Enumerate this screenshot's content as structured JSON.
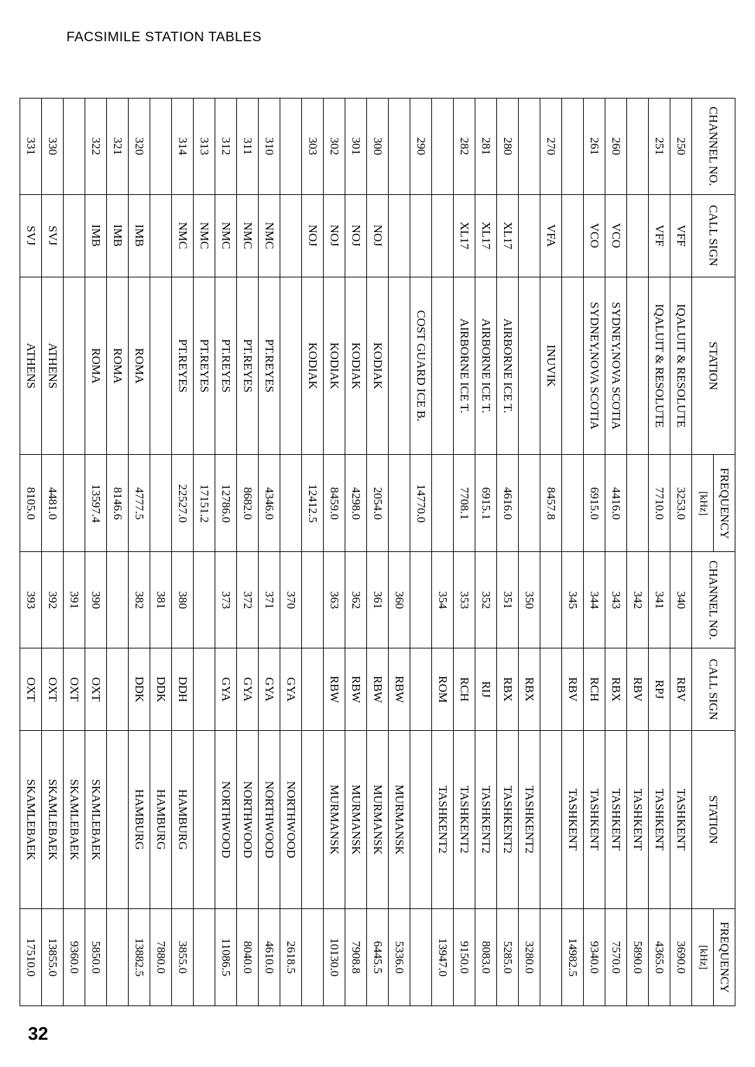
{
  "page_header": "FACSIMILE STATION TABLES",
  "page_number": "32",
  "table": {
    "headers": {
      "channel_no": "CHANNEL NO.",
      "call_sign": "CALL SIGN",
      "station": "STATION",
      "frequency": "FREQUENCY",
      "khz": "[kHz]"
    },
    "rows": [
      {
        "l": {
          "ch": "250",
          "call": "VFF",
          "stn": "IQALUIT & RESOLUTE",
          "freq": "3253.0"
        },
        "r": {
          "ch": "340",
          "call": "RBV",
          "stn": "TASHKENT",
          "freq": "3690.0"
        }
      },
      {
        "l": {
          "ch": "251",
          "call": "VFF",
          "stn": "IQALUIT & RESOLUTE",
          "freq": "7710.0"
        },
        "r": {
          "ch": "341",
          "call": "RPJ",
          "stn": "TASHKENT",
          "freq": "4365.0"
        }
      },
      {
        "l": {
          "ch": "",
          "call": "",
          "stn": "",
          "freq": ""
        },
        "r": {
          "ch": "342",
          "call": "RBV",
          "stn": "TASHKENT",
          "freq": "5890.0"
        }
      },
      {
        "l": {
          "ch": "260",
          "call": "VCO",
          "stn": "SYDNEY,NOVA SCOTIA",
          "freq": "4416.0"
        },
        "r": {
          "ch": "343",
          "call": "RBX",
          "stn": "TASHKENT",
          "freq": "7570.0"
        }
      },
      {
        "l": {
          "ch": "261",
          "call": "VCO",
          "stn": "SYDNEY,NOVA SCOTIA",
          "freq": "6915.0"
        },
        "r": {
          "ch": "344",
          "call": "RCH",
          "stn": "TASHKENT",
          "freq": "9340.0"
        }
      },
      {
        "l": {
          "ch": "",
          "call": "",
          "stn": "",
          "freq": ""
        },
        "r": {
          "ch": "345",
          "call": "RBV",
          "stn": "TASHKENT",
          "freq": "14982.5"
        }
      },
      {
        "l": {
          "ch": "270",
          "call": "VFA",
          "stn": "INUVIK",
          "freq": "8457.8"
        },
        "r": {
          "ch": "",
          "call": "",
          "stn": "",
          "freq": ""
        }
      },
      {
        "l": {
          "ch": "",
          "call": "",
          "stn": "",
          "freq": ""
        },
        "r": {
          "ch": "350",
          "call": "RBX",
          "stn": "TASHKENT2",
          "freq": "3280.0"
        }
      },
      {
        "l": {
          "ch": "280",
          "call": "XL17",
          "stn": "AIRBORNE ICE T.",
          "freq": "4616.0"
        },
        "r": {
          "ch": "351",
          "call": "RBX",
          "stn": "TASHKENT2",
          "freq": "5285.0"
        }
      },
      {
        "l": {
          "ch": "281",
          "call": "XL17",
          "stn": "AIRBORNE ICE T.",
          "freq": "6915.1"
        },
        "r": {
          "ch": "352",
          "call": "RIJ",
          "stn": "TASHKENT2",
          "freq": "8083.0"
        }
      },
      {
        "l": {
          "ch": "282",
          "call": "XL17",
          "stn": "AIRBORNE ICE T.",
          "freq": "7708.1"
        },
        "r": {
          "ch": "353",
          "call": "RCH",
          "stn": "TASHKENT2",
          "freq": "9150.0"
        }
      },
      {
        "l": {
          "ch": "",
          "call": "",
          "stn": "",
          "freq": ""
        },
        "r": {
          "ch": "354",
          "call": "ROM",
          "stn": "TASHKENT2",
          "freq": "13947.0"
        }
      },
      {
        "l": {
          "ch": "290",
          "call": "",
          "stn": "COST GUARD ICE B.",
          "freq": "14770.0"
        },
        "r": {
          "ch": "",
          "call": "",
          "stn": "",
          "freq": ""
        }
      },
      {
        "l": {
          "ch": "",
          "call": "",
          "stn": "",
          "freq": ""
        },
        "r": {
          "ch": "360",
          "call": "RBW",
          "stn": "MURMANSK",
          "freq": "5336.0"
        }
      },
      {
        "l": {
          "ch": "300",
          "call": "NOJ",
          "stn": "KODIAK",
          "freq": "2054.0"
        },
        "r": {
          "ch": "361",
          "call": "RBW",
          "stn": "MURMANSK",
          "freq": "6445.5"
        }
      },
      {
        "l": {
          "ch": "301",
          "call": "NOJ",
          "stn": "KODIAK",
          "freq": "4298.0"
        },
        "r": {
          "ch": "362",
          "call": "RBW",
          "stn": "MURMANSK",
          "freq": "7908.8"
        }
      },
      {
        "l": {
          "ch": "302",
          "call": "NOJ",
          "stn": "KODIAK",
          "freq": "8459.0"
        },
        "r": {
          "ch": "363",
          "call": "RBW",
          "stn": "MURMANSK",
          "freq": "10130.0"
        }
      },
      {
        "l": {
          "ch": "303",
          "call": "NOJ",
          "stn": "KODIAK",
          "freq": "12412.5"
        },
        "r": {
          "ch": "",
          "call": "",
          "stn": "",
          "freq": ""
        }
      },
      {
        "l": {
          "ch": "",
          "call": "",
          "stn": "",
          "freq": ""
        },
        "r": {
          "ch": "370",
          "call": "GYA",
          "stn": "NORTHWOOD",
          "freq": "2618.5"
        }
      },
      {
        "l": {
          "ch": "310",
          "call": "NMC",
          "stn": "PT.REYES",
          "freq": "4346.0"
        },
        "r": {
          "ch": "371",
          "call": "GYA",
          "stn": "NORTHWOOD",
          "freq": "4610.0"
        }
      },
      {
        "l": {
          "ch": "311",
          "call": "NMC",
          "stn": "PT.REYES",
          "freq": "8682.0"
        },
        "r": {
          "ch": "372",
          "call": "GYA",
          "stn": "NORTHWOOD",
          "freq": "8040.0"
        }
      },
      {
        "l": {
          "ch": "312",
          "call": "NMC",
          "stn": "PT.REYES",
          "freq": "12786.0"
        },
        "r": {
          "ch": "373",
          "call": "GYA",
          "stn": "NORTHWOOD",
          "freq": "11086.5"
        }
      },
      {
        "l": {
          "ch": "313",
          "call": "NMC",
          "stn": "PT.REYES",
          "freq": "17151.2"
        },
        "r": {
          "ch": "",
          "call": "",
          "stn": "",
          "freq": ""
        }
      },
      {
        "l": {
          "ch": "314",
          "call": "NMC",
          "stn": "PT.REYES",
          "freq": "22527.0"
        },
        "r": {
          "ch": "380",
          "call": "DDH",
          "stn": "HAMBURG",
          "freq": "3855.0"
        }
      },
      {
        "l": {
          "ch": "",
          "call": "",
          "stn": "",
          "freq": ""
        },
        "r": {
          "ch": "381",
          "call": "DDK",
          "stn": "HAMBURG",
          "freq": "7880.0"
        }
      },
      {
        "l": {
          "ch": "320",
          "call": "IMB",
          "stn": "ROMA",
          "freq": "4777.5"
        },
        "r": {
          "ch": "382",
          "call": "DDK",
          "stn": "HAMBURG",
          "freq": "13882.5"
        }
      },
      {
        "l": {
          "ch": "321",
          "call": "IMB",
          "stn": "ROMA",
          "freq": "8146.6"
        },
        "r": {
          "ch": "",
          "call": "",
          "stn": "",
          "freq": ""
        }
      },
      {
        "l": {
          "ch": "322",
          "call": "IMB",
          "stn": "ROMA",
          "freq": "13597.4"
        },
        "r": {
          "ch": "390",
          "call": "OXT",
          "stn": "SKAMLEBAEK",
          "freq": "5850.0"
        }
      },
      {
        "l": {
          "ch": "",
          "call": "",
          "stn": "",
          "freq": ""
        },
        "r": {
          "ch": "391",
          "call": "OXT",
          "stn": "SKAMLEBAEK",
          "freq": "9360.0"
        }
      },
      {
        "l": {
          "ch": "330",
          "call": "SVJ",
          "stn": "ATHENS",
          "freq": "4481.0"
        },
        "r": {
          "ch": "392",
          "call": "OXT",
          "stn": "SKAMLEBAEK",
          "freq": "13855.0"
        }
      },
      {
        "l": {
          "ch": "331",
          "call": "SVJ",
          "stn": "ATHENS",
          "freq": "8105.0"
        },
        "r": {
          "ch": "393",
          "call": "OXT",
          "stn": "SKAMLEBAEK",
          "freq": "17510.0"
        }
      }
    ]
  }
}
